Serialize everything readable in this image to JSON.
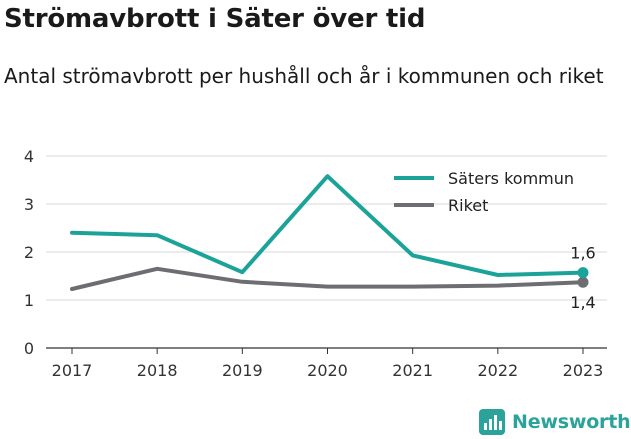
{
  "title": "Strömavbrott i Säter över tid",
  "subtitle": "Antal strömavbrott per hushåll och år i kommunen och riket",
  "brand": "Newsworthy",
  "colors": {
    "teal": "#1ba399",
    "gray": "#6e6d72",
    "grid": "#d9d9d9",
    "axis": "#333333"
  },
  "chart_data": {
    "type": "line",
    "x": [
      "2017",
      "2018",
      "2019",
      "2020",
      "2021",
      "2022",
      "2023"
    ],
    "ylim": [
      0,
      4
    ],
    "yticks": [
      "0",
      "1",
      "2",
      "3",
      "4"
    ],
    "grid": true,
    "legend": "top-right",
    "series": [
      {
        "name": "Säters kommun",
        "color": "#1ba399",
        "values": [
          2.4,
          2.35,
          1.58,
          3.58,
          1.93,
          1.52,
          1.57
        ],
        "end_label": "1,6"
      },
      {
        "name": "Riket",
        "color": "#6e6d72",
        "values": [
          1.23,
          1.65,
          1.38,
          1.28,
          1.28,
          1.3,
          1.37
        ],
        "end_label": "1,4"
      }
    ]
  }
}
